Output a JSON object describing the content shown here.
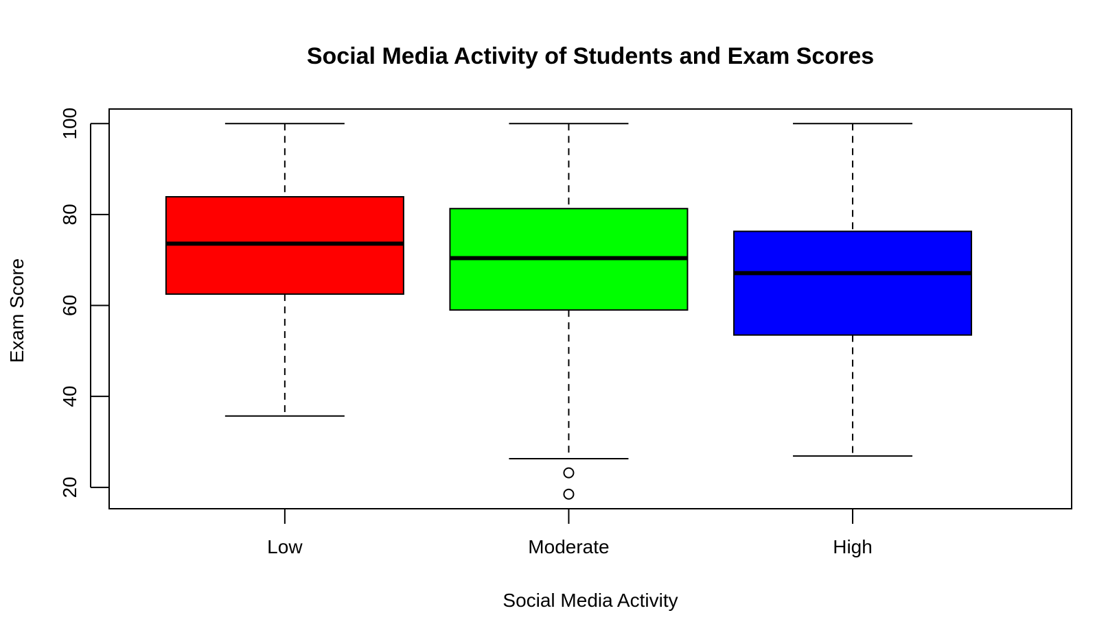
{
  "chart_data": {
    "type": "box",
    "title": "Social Media Activity of Students and Exam Scores",
    "xlabel": "Social Media Activity",
    "ylabel": "Exam Score",
    "ylim": [
      15.3,
      103.2
    ],
    "yticks": [
      20,
      40,
      60,
      80,
      100
    ],
    "ytick_labels": [
      "20",
      "40",
      "60",
      "80",
      "100"
    ],
    "grid": false,
    "legend": "none",
    "categories": [
      "Low",
      "Moderate",
      "High"
    ],
    "series": [
      {
        "category": "Low",
        "color": "#ff0000",
        "whisker_low": 35.7,
        "q1": 62.5,
        "median": 73.6,
        "q3": 83.9,
        "whisker_high": 100,
        "outliers": []
      },
      {
        "category": "Moderate",
        "color": "#00ff00",
        "whisker_low": 26.3,
        "q1": 59.0,
        "median": 70.4,
        "q3": 81.3,
        "whisker_high": 100,
        "outliers": [
          23.2,
          18.5
        ]
      },
      {
        "category": "High",
        "color": "#0000ff",
        "whisker_low": 26.9,
        "q1": 53.5,
        "median": 67.1,
        "q3": 76.3,
        "whisker_high": 100,
        "outliers": []
      }
    ]
  }
}
